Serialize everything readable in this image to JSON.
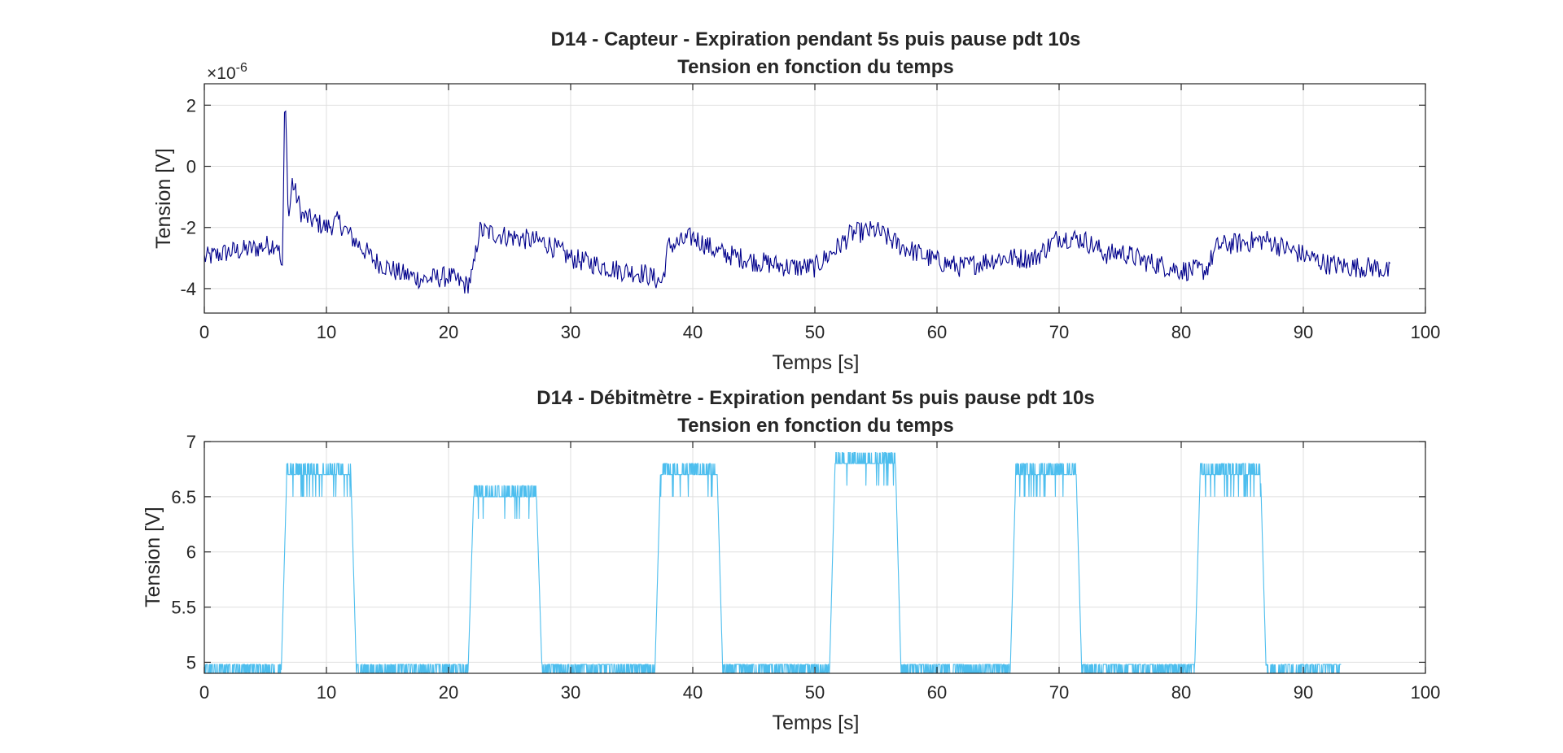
{
  "chart_data": [
    {
      "type": "line",
      "title": "D14 - Capteur - Expiration pendant 5s puis pause pdt 10s",
      "subtitle": "Tension en fonction du temps",
      "xlabel": "Temps [s]",
      "ylabel": "Tension [V]",
      "xlim": [
        0,
        100
      ],
      "ylim": [
        -4.8,
        2.7
      ],
      "x_ticks": [
        "0",
        "10",
        "20",
        "30",
        "40",
        "50",
        "60",
        "70",
        "80",
        "90",
        "100"
      ],
      "y_ticks": [
        "-4",
        "-2",
        "0",
        "2"
      ],
      "y_exponent": "×10",
      "y_exponent_power": "-6",
      "grid": true,
      "series": [
        {
          "color": "#00008B",
          "x_end": 97.2,
          "x": [
            0,
            2,
            4,
            6,
            6.4,
            6.6,
            6.9,
            7.2,
            8,
            10,
            11,
            12,
            14,
            16,
            18,
            20,
            21.5,
            22,
            22.5,
            25,
            28,
            30,
            32,
            34,
            36,
            37.5,
            38,
            39,
            40,
            42,
            45,
            48,
            50,
            52,
            53,
            55,
            57,
            60,
            62,
            65,
            68,
            70,
            72,
            74,
            75,
            77,
            80,
            82,
            83,
            85,
            87,
            88,
            90,
            92,
            94,
            96,
            97.2
          ],
          "y": [
            -3.0,
            -2.8,
            -2.7,
            -2.5,
            -3.5,
            2.7,
            -1.8,
            -0.5,
            -1.6,
            -2.0,
            -1.8,
            -2.3,
            -3.1,
            -3.5,
            -3.7,
            -3.6,
            -3.9,
            -3.5,
            -2.1,
            -2.3,
            -2.5,
            -3.0,
            -3.2,
            -3.4,
            -3.5,
            -3.8,
            -2.6,
            -2.5,
            -2.3,
            -2.8,
            -3.1,
            -3.3,
            -3.3,
            -2.6,
            -2.2,
            -2.1,
            -2.6,
            -3.1,
            -3.3,
            -3.0,
            -3.0,
            -2.3,
            -2.4,
            -2.9,
            -2.8,
            -3.1,
            -3.4,
            -3.4,
            -2.6,
            -2.5,
            -2.4,
            -2.6,
            -2.9,
            -3.2,
            -3.3,
            -3.3,
            -3.5
          ],
          "noise": 0.35
        }
      ]
    },
    {
      "type": "line",
      "title": "D14 - Débitmètre - Expiration pendant 5s puis pause pdt 10s",
      "subtitle": "Tension en fonction du temps",
      "xlabel": "Temps [s]",
      "ylabel": "Tension [V]",
      "xlim": [
        0,
        100
      ],
      "ylim": [
        4.9,
        7.0
      ],
      "x_ticks": [
        "0",
        "10",
        "20",
        "30",
        "40",
        "50",
        "60",
        "70",
        "80",
        "90",
        "100"
      ],
      "y_ticks": [
        "5",
        "5.5",
        "6",
        "6.5",
        "7"
      ],
      "grid": true,
      "baseline": 4.93,
      "x_end": 93.1,
      "pulses": [
        {
          "start": 6.3,
          "end": 12.0,
          "level": 6.7
        },
        {
          "start": 21.6,
          "end": 27.2,
          "level": 6.5
        },
        {
          "start": 36.9,
          "end": 42.0,
          "level": 6.7
        },
        {
          "start": 51.2,
          "end": 56.6,
          "level": 6.8
        },
        {
          "start": 66.0,
          "end": 71.4,
          "level": 6.7
        },
        {
          "start": 81.1,
          "end": 86.5,
          "level": 6.7
        }
      ],
      "series": [
        {
          "color": "#4DBEEE"
        }
      ]
    }
  ]
}
